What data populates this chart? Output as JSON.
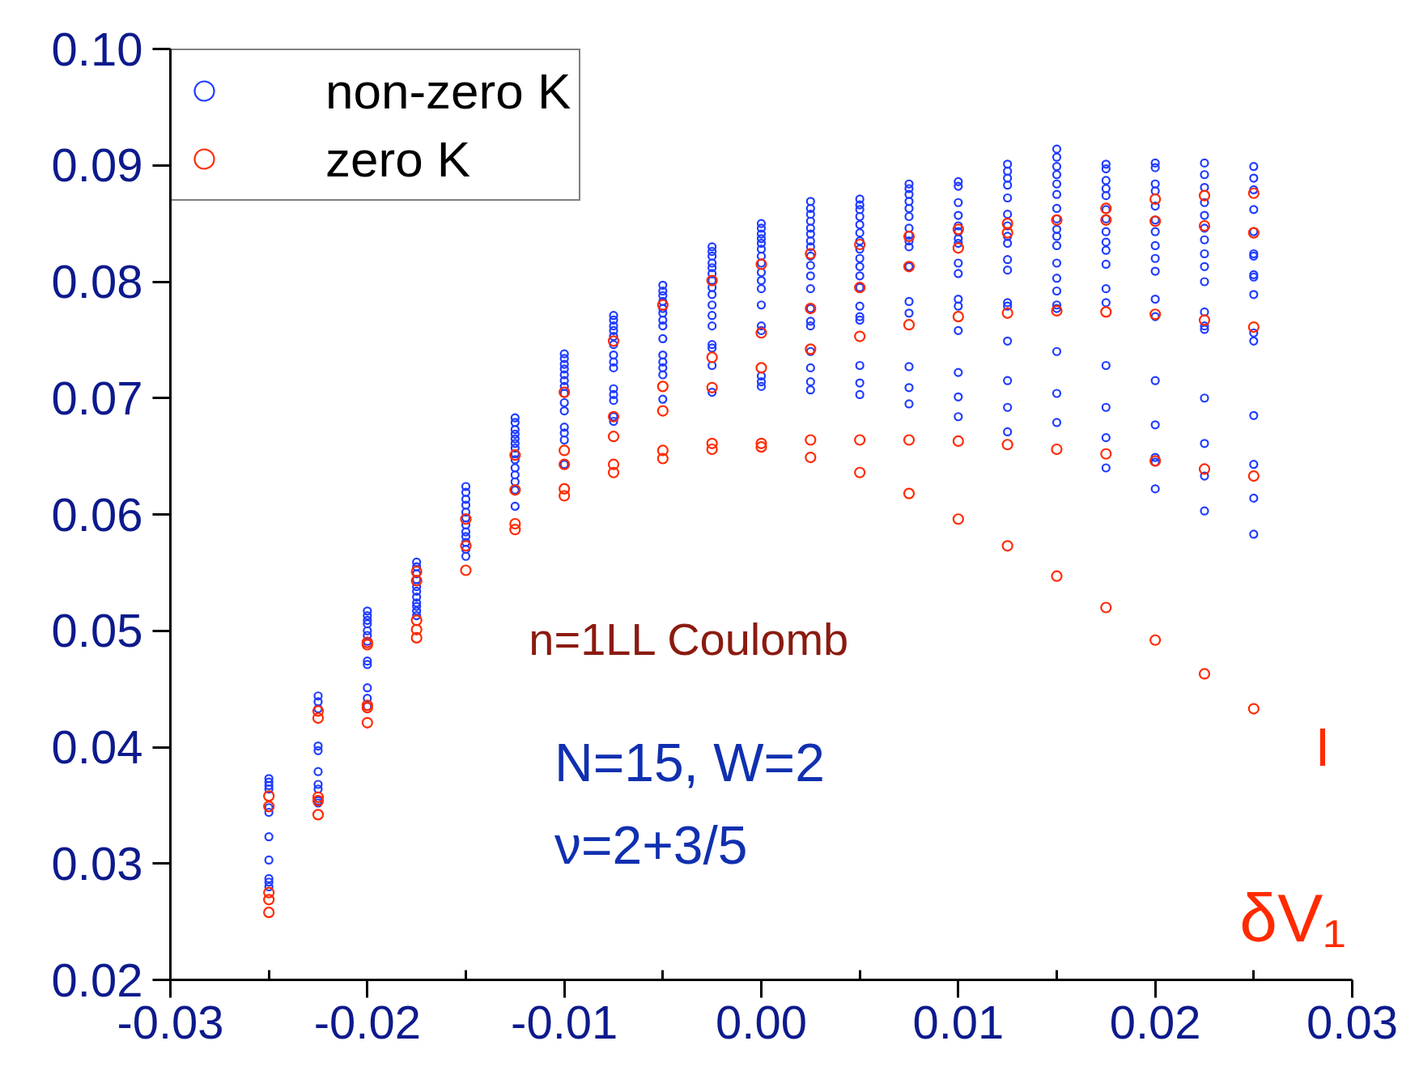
{
  "chart_data": {
    "type": "scatter",
    "xlabel": "δV₁",
    "xlim": [
      -0.03,
      0.03
    ],
    "xticks": [
      {
        "value": -0.03,
        "label": "-0.03"
      },
      {
        "value": -0.02,
        "label": "-0.02"
      },
      {
        "value": -0.01,
        "label": "-0.01"
      },
      {
        "value": 0,
        "label": "0.00"
      },
      {
        "value": 0.01,
        "label": "0.01"
      },
      {
        "value": 0.02,
        "label": "0.02"
      },
      {
        "value": 0.03,
        "label": "0.03"
      }
    ],
    "ylim": [
      0.02,
      0.1
    ],
    "yticks": [
      {
        "value": 0.02,
        "label": "0.02"
      },
      0.03,
      0.04,
      0.05,
      0.06,
      0.07,
      0.08,
      0.09,
      {
        "value": 0.1,
        "label": "0.10"
      }
    ],
    "grid": false,
    "legend": "top left",
    "marker": "circle",
    "annotations": [
      "n=1LL Coulomb",
      "N=15, W=2",
      "ν=2+3/5",
      "I"
    ],
    "series": [
      {
        "name": "non-zero K",
        "color": "#1f3cff",
        "x": [
          -0.025,
          -0.025,
          -0.025,
          -0.025,
          -0.025,
          -0.025,
          -0.025,
          -0.025,
          -0.025,
          -0.025,
          -0.025,
          -0.0225,
          -0.0225,
          -0.0225,
          -0.0225,
          -0.0225,
          -0.0225,
          -0.0225,
          -0.0225,
          -0.0225,
          -0.0225,
          -0.02,
          -0.02,
          -0.02,
          -0.02,
          -0.02,
          -0.02,
          -0.02,
          -0.02,
          -0.02,
          -0.02,
          -0.02,
          -0.02,
          -0.0175,
          -0.0175,
          -0.0175,
          -0.0175,
          -0.0175,
          -0.0175,
          -0.0175,
          -0.0175,
          -0.0175,
          -0.0175,
          -0.0175,
          -0.015,
          -0.015,
          -0.015,
          -0.015,
          -0.015,
          -0.015,
          -0.015,
          -0.015,
          -0.015,
          -0.015,
          -0.015,
          -0.015,
          -0.0125,
          -0.0125,
          -0.0125,
          -0.0125,
          -0.0125,
          -0.0125,
          -0.0125,
          -0.0125,
          -0.0125,
          -0.0125,
          -0.0125,
          -0.0125,
          -0.0125,
          -0.0125,
          -0.01,
          -0.01,
          -0.01,
          -0.01,
          -0.01,
          -0.01,
          -0.01,
          -0.01,
          -0.01,
          -0.01,
          -0.01,
          -0.01,
          -0.01,
          -0.01,
          -0.0075,
          -0.0075,
          -0.0075,
          -0.0075,
          -0.0075,
          -0.0075,
          -0.0075,
          -0.0075,
          -0.0075,
          -0.0075,
          -0.0075,
          -0.0075,
          -0.0075,
          -0.0075,
          -0.005,
          -0.005,
          -0.005,
          -0.005,
          -0.005,
          -0.005,
          -0.005,
          -0.005,
          -0.005,
          -0.005,
          -0.005,
          -0.005,
          -0.005,
          -0.005,
          -0.0025,
          -0.0025,
          -0.0025,
          -0.0025,
          -0.0025,
          -0.0025,
          -0.0025,
          -0.0025,
          -0.0025,
          -0.0025,
          -0.0025,
          -0.0025,
          -0.0025,
          -0.0025,
          -0.0025,
          -0.0025,
          0,
          0,
          0,
          0,
          0,
          0,
          0,
          0,
          0,
          0,
          0,
          0,
          0,
          0,
          0,
          0,
          0,
          0.0025,
          0.0025,
          0.0025,
          0.0025,
          0.0025,
          0.0025,
          0.0025,
          0.0025,
          0.0025,
          0.0025,
          0.0025,
          0.0025,
          0.0025,
          0.0025,
          0.0025,
          0.0025,
          0.0025,
          0.0025,
          0.0025,
          0.005,
          0.005,
          0.005,
          0.005,
          0.005,
          0.005,
          0.005,
          0.005,
          0.005,
          0.005,
          0.005,
          0.005,
          0.005,
          0.005,
          0.005,
          0.005,
          0.005,
          0.005,
          0.0075,
          0.0075,
          0.0075,
          0.0075,
          0.0075,
          0.0075,
          0.0075,
          0.0075,
          0.0075,
          0.0075,
          0.0075,
          0.0075,
          0.0075,
          0.0075,
          0.0075,
          0.0075,
          0.01,
          0.01,
          0.01,
          0.01,
          0.01,
          0.01,
          0.01,
          0.01,
          0.01,
          0.01,
          0.01,
          0.01,
          0.01,
          0.01,
          0.01,
          0.01,
          0.0125,
          0.0125,
          0.0125,
          0.0125,
          0.0125,
          0.0125,
          0.0125,
          0.0125,
          0.0125,
          0.0125,
          0.0125,
          0.0125,
          0.0125,
          0.0125,
          0.0125,
          0.0125,
          0.0125,
          0.015,
          0.015,
          0.015,
          0.015,
          0.015,
          0.015,
          0.015,
          0.015,
          0.015,
          0.015,
          0.015,
          0.015,
          0.015,
          0.015,
          0.015,
          0.015,
          0.015,
          0.015,
          0.015,
          0.0175,
          0.0175,
          0.0175,
          0.0175,
          0.0175,
          0.0175,
          0.0175,
          0.0175,
          0.0175,
          0.0175,
          0.0175,
          0.0175,
          0.0175,
          0.0175,
          0.0175,
          0.0175,
          0.0175,
          0.02,
          0.02,
          0.02,
          0.02,
          0.02,
          0.02,
          0.02,
          0.02,
          0.02,
          0.02,
          0.02,
          0.02,
          0.02,
          0.02,
          0.02,
          0.02,
          0.02,
          0.0225,
          0.0225,
          0.0225,
          0.0225,
          0.0225,
          0.0225,
          0.0225,
          0.0225,
          0.0225,
          0.0225,
          0.0225,
          0.0225,
          0.0225,
          0.0225,
          0.0225,
          0.0225,
          0.0225,
          0.025,
          0.025,
          0.025,
          0.025,
          0.025,
          0.025,
          0.025,
          0.025,
          0.025,
          0.025,
          0.025,
          0.025,
          0.025,
          0.025,
          0.025,
          0.025
        ],
        "values": [
          0.0373,
          0.037,
          0.0367,
          0.0364,
          0.0348,
          0.0344,
          0.0323,
          0.0303,
          0.0287,
          0.0284,
          0.028,
          0.0444,
          0.0439,
          0.0433,
          0.0401,
          0.0397,
          0.0379,
          0.0368,
          0.0364,
          0.0354,
          0.0352,
          0.0517,
          0.0513,
          0.0509,
          0.0506,
          0.05,
          0.0496,
          0.0491,
          0.0474,
          0.0471,
          0.0451,
          0.0442,
          0.0435,
          0.0559,
          0.0555,
          0.0549,
          0.0544,
          0.0538,
          0.0534,
          0.0529,
          0.0524,
          0.0521,
          0.0517,
          0.0513,
          0.0624,
          0.0619,
          0.0613,
          0.0608,
          0.0602,
          0.0597,
          0.0591,
          0.0585,
          0.0581,
          0.0576,
          0.057,
          0.0564,
          0.0683,
          0.0679,
          0.0673,
          0.0669,
          0.0665,
          0.0661,
          0.0657,
          0.0652,
          0.0647,
          0.064,
          0.0634,
          0.0628,
          0.0621,
          0.0607,
          0.0738,
          0.0734,
          0.0729,
          0.0725,
          0.072,
          0.0715,
          0.071,
          0.0704,
          0.0696,
          0.0689,
          0.0675,
          0.067,
          0.0664,
          0.0643,
          0.0771,
          0.0767,
          0.0762,
          0.0758,
          0.0753,
          0.0746,
          0.0737,
          0.0731,
          0.0726,
          0.0708,
          0.0703,
          0.0698,
          0.0684,
          0.068,
          0.0797,
          0.0792,
          0.0788,
          0.0783,
          0.0777,
          0.0773,
          0.0767,
          0.0762,
          0.0751,
          0.0737,
          0.0731,
          0.0726,
          0.072,
          0.0699,
          0.083,
          0.0826,
          0.0822,
          0.0816,
          0.0812,
          0.0807,
          0.0801,
          0.0795,
          0.0789,
          0.078,
          0.0771,
          0.0762,
          0.0746,
          0.0743,
          0.0728,
          0.0705,
          0.085,
          0.0846,
          0.0841,
          0.0837,
          0.0833,
          0.0828,
          0.0822,
          0.0816,
          0.0808,
          0.0801,
          0.0794,
          0.078,
          0.0762,
          0.0758,
          0.0719,
          0.0714,
          0.071,
          0.0869,
          0.0863,
          0.0858,
          0.0852,
          0.0846,
          0.0841,
          0.0835,
          0.083,
          0.0822,
          0.0814,
          0.0805,
          0.0794,
          0.0777,
          0.0766,
          0.0762,
          0.074,
          0.0726,
          0.0714,
          0.0707,
          0.0871,
          0.0866,
          0.0862,
          0.0856,
          0.0849,
          0.0842,
          0.0835,
          0.0828,
          0.082,
          0.0813,
          0.0805,
          0.0795,
          0.0779,
          0.077,
          0.0767,
          0.0728,
          0.0713,
          0.0703,
          0.0884,
          0.088,
          0.0875,
          0.0869,
          0.0863,
          0.0856,
          0.0846,
          0.084,
          0.0835,
          0.083,
          0.0813,
          0.0783,
          0.0773,
          0.0727,
          0.0709,
          0.0695,
          0.0886,
          0.0882,
          0.0868,
          0.0857,
          0.0848,
          0.0843,
          0.0837,
          0.0833,
          0.0816,
          0.0807,
          0.0785,
          0.0779,
          0.0758,
          0.0722,
          0.0701,
          0.0684,
          0.0901,
          0.0895,
          0.0889,
          0.0883,
          0.0872,
          0.0858,
          0.0848,
          0.0839,
          0.0833,
          0.0819,
          0.081,
          0.0782,
          0.0779,
          0.0749,
          0.0715,
          0.0692,
          0.0671,
          0.0914,
          0.0907,
          0.0899,
          0.0892,
          0.0884,
          0.0875,
          0.0863,
          0.0854,
          0.0845,
          0.0839,
          0.0831,
          0.0816,
          0.0803,
          0.0792,
          0.078,
          0.0777,
          0.074,
          0.0704,
          0.0679,
          0.0901,
          0.0897,
          0.0887,
          0.088,
          0.0874,
          0.0862,
          0.0854,
          0.0843,
          0.0834,
          0.0827,
          0.0815,
          0.0794,
          0.0782,
          0.0728,
          0.0692,
          0.0666,
          0.064,
          0.0902,
          0.0898,
          0.0884,
          0.0878,
          0.0865,
          0.0853,
          0.0843,
          0.0831,
          0.082,
          0.0809,
          0.0785,
          0.077,
          0.0715,
          0.0677,
          0.0649,
          0.0645,
          0.0622,
          0.0902,
          0.0892,
          0.0881,
          0.0868,
          0.0857,
          0.0846,
          0.0836,
          0.0824,
          0.0813,
          0.08,
          0.0774,
          0.0762,
          0.0759,
          0.07,
          0.0661,
          0.0633,
          0.0603,
          0.0899,
          0.0889,
          0.0879,
          0.0862,
          0.0843,
          0.0824,
          0.0822,
          0.0806,
          0.0804,
          0.0789,
          0.0756,
          0.0749,
          0.0685,
          0.0643,
          0.0614,
          0.0583
        ]
      },
      {
        "name": "zero K",
        "color": "#ff2a00",
        "x": [
          -0.025,
          -0.025,
          -0.025,
          -0.025,
          -0.025,
          -0.0225,
          -0.0225,
          -0.0225,
          -0.0225,
          -0.0225,
          -0.02,
          -0.02,
          -0.02,
          -0.02,
          -0.02,
          -0.0175,
          -0.0175,
          -0.0175,
          -0.0175,
          -0.0175,
          -0.015,
          -0.015,
          -0.015,
          -0.0125,
          -0.0125,
          -0.0125,
          -0.0125,
          -0.01,
          -0.01,
          -0.01,
          -0.01,
          -0.01,
          -0.0075,
          -0.0075,
          -0.0075,
          -0.0075,
          -0.0075,
          -0.005,
          -0.005,
          -0.005,
          -0.005,
          -0.005,
          -0.0025,
          -0.0025,
          -0.0025,
          -0.0025,
          -0.0025,
          0,
          0,
          0,
          0,
          0,
          0.0025,
          0.0025,
          0.0025,
          0.0025,
          0.0025,
          0.005,
          0.005,
          0.005,
          0.005,
          0.005,
          0.0075,
          0.0075,
          0.0075,
          0.0075,
          0.0075,
          0.01,
          0.01,
          0.01,
          0.01,
          0.01,
          0.0125,
          0.0125,
          0.0125,
          0.0125,
          0.0125,
          0.015,
          0.015,
          0.015,
          0.015,
          0.0175,
          0.0175,
          0.0175,
          0.0175,
          0.0175,
          0.02,
          0.02,
          0.02,
          0.02,
          0.02,
          0.0225,
          0.0225,
          0.0225,
          0.0225,
          0.0225,
          0.025,
          0.025,
          0.025,
          0.025,
          0.025
        ],
        "values": [
          0.0358,
          0.0349,
          0.0275,
          0.0269,
          0.0258,
          0.0431,
          0.0425,
          0.0357,
          0.0354,
          0.0342,
          0.049,
          0.0488,
          0.0436,
          0.0434,
          0.0421,
          0.0551,
          0.0543,
          0.0509,
          0.0501,
          0.0494,
          0.0596,
          0.0573,
          0.0552,
          0.0651,
          0.0621,
          0.0592,
          0.0587,
          0.0705,
          0.0655,
          0.0643,
          0.0622,
          0.0616,
          0.0749,
          0.0684,
          0.0667,
          0.0643,
          0.0636,
          0.078,
          0.071,
          0.0689,
          0.0655,
          0.0648,
          0.0801,
          0.0735,
          0.0709,
          0.0661,
          0.0656,
          0.0815,
          0.0756,
          0.0726,
          0.0661,
          0.0658,
          0.0824,
          0.0777,
          0.0742,
          0.0664,
          0.0649,
          0.0832,
          0.0795,
          0.0753,
          0.0664,
          0.0636,
          0.0839,
          0.0813,
          0.0763,
          0.0664,
          0.0618,
          0.0845,
          0.0829,
          0.077,
          0.0663,
          0.0596,
          0.085,
          0.0842,
          0.0773,
          0.066,
          0.0573,
          0.0853,
          0.0775,
          0.0656,
          0.0547,
          0.0863,
          0.0853,
          0.0774,
          0.0652,
          0.052,
          0.0871,
          0.0852,
          0.0772,
          0.0646,
          0.0492,
          0.0874,
          0.0848,
          0.0767,
          0.0639,
          0.0463,
          0.0876,
          0.0842,
          0.0761,
          0.0633,
          0.0433
        ]
      }
    ]
  }
}
